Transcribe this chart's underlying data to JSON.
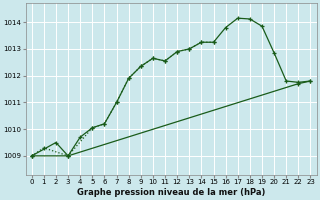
{
  "bg_color": "#cce8ec",
  "grid_color": "#ffffff",
  "line_color": "#1a5c1a",
  "title": "Graphe pression niveau de la mer (hPa)",
  "xlim": [
    -0.5,
    23.5
  ],
  "ylim": [
    1008.3,
    1014.7
  ],
  "yticks": [
    1009,
    1010,
    1011,
    1012,
    1013,
    1014
  ],
  "xticks": [
    0,
    1,
    2,
    3,
    4,
    5,
    6,
    7,
    8,
    9,
    10,
    11,
    12,
    13,
    14,
    15,
    16,
    17,
    18,
    19,
    20,
    21,
    22,
    23
  ],
  "series": [
    {
      "x": [
        0,
        1,
        3,
        5,
        6,
        7,
        8,
        9,
        10,
        11,
        12,
        13,
        14,
        15
      ],
      "y": [
        1009.0,
        1009.3,
        1009.0,
        1010.05,
        1010.2,
        1011.0,
        1011.9,
        1012.35,
        1012.65,
        1012.55,
        1012.9,
        1013.0,
        1013.25,
        1013.25
      ],
      "style": "dotted",
      "marker": "+"
    },
    {
      "x": [
        0,
        2,
        3,
        4,
        5,
        6,
        7,
        8,
        9,
        10,
        11,
        12,
        13,
        14,
        15,
        16,
        17,
        18,
        19,
        20,
        21,
        22,
        23
      ],
      "y": [
        1009.0,
        1009.5,
        1009.0,
        1009.7,
        1010.05,
        1010.2,
        1011.0,
        1011.9,
        1012.35,
        1012.65,
        1012.55,
        1012.9,
        1013.0,
        1013.25,
        1013.25,
        1013.8,
        1014.15,
        1014.12,
        1013.85,
        1012.85,
        1011.8,
        1011.75,
        1011.8
      ],
      "style": "solid",
      "marker": "+"
    },
    {
      "x": [
        0,
        3,
        22,
        23
      ],
      "y": [
        1009.0,
        1009.0,
        1011.7,
        1011.8
      ],
      "style": "solid",
      "marker": "+"
    }
  ],
  "title_fontsize": 6,
  "tick_fontsize": 5,
  "figsize": [
    3.2,
    2.0
  ],
  "dpi": 100
}
